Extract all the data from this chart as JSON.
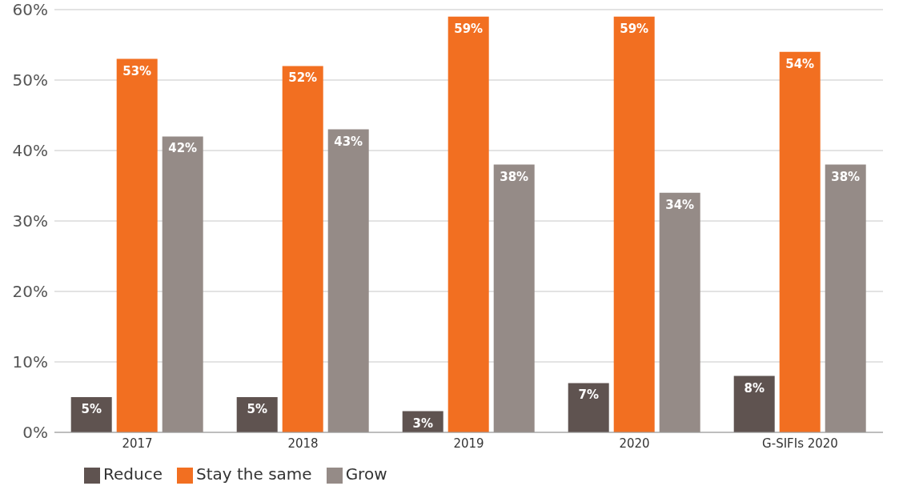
{
  "chart_data": {
    "type": "bar",
    "categories": [
      "2017",
      "2018",
      "2019",
      "2020",
      "G-SIFIs 2020"
    ],
    "series": [
      {
        "name": "Reduce",
        "color": "#5f5350",
        "values": [
          5,
          5,
          3,
          7,
          8
        ],
        "value_labels": [
          "5%",
          "5%",
          "3%",
          "7%",
          "8%"
        ]
      },
      {
        "name": "Stay the same",
        "color": "#f26f21",
        "values": [
          53,
          52,
          59,
          59,
          54
        ],
        "value_labels": [
          "53%",
          "52%",
          "59%",
          "59%",
          "54%"
        ]
      },
      {
        "name": "Grow",
        "color": "#958b87",
        "values": [
          42,
          43,
          38,
          34,
          38
        ],
        "value_labels": [
          "42%",
          "43%",
          "38%",
          "34%",
          "38%"
        ]
      }
    ],
    "ylim": [
      0,
      60
    ],
    "yticks": [
      {
        "value": 0,
        "label": "0%"
      },
      {
        "value": 10,
        "label": "10%"
      },
      {
        "value": 20,
        "label": "20%"
      },
      {
        "value": 30,
        "label": "30%"
      },
      {
        "value": 40,
        "label": "40%"
      },
      {
        "value": 50,
        "label": "50%"
      },
      {
        "value": 60,
        "label": "60%"
      }
    ],
    "grid": "y",
    "legend": "bottom left"
  }
}
